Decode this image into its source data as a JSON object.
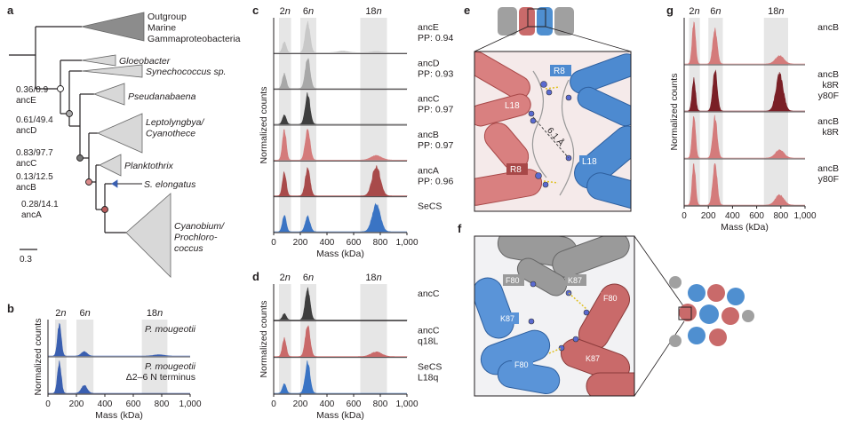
{
  "panels": {
    "a": {
      "label": "a",
      "clades": [
        {
          "lines": [
            "Outgroup",
            "Marine",
            "Gammaproteobacteria"
          ],
          "italic": false
        },
        {
          "lines": [
            "Gloeobacter"
          ],
          "italic": true
        },
        {
          "lines": [
            "Synechococcus sp."
          ],
          "italic": true
        },
        {
          "lines": [
            "Pseudanabaena"
          ],
          "italic": true
        },
        {
          "lines": [
            "Leptolyngbya/",
            "Cyanothece"
          ],
          "italic": true
        },
        {
          "lines": [
            "Planktothrix"
          ],
          "italic": true
        },
        {
          "lines": [
            "S. elongatus"
          ],
          "italic": true
        },
        {
          "lines": [
            "Cyanobium/",
            "Prochloro-",
            "coccus"
          ],
          "italic": true
        }
      ],
      "nodes": [
        {
          "support": "0.36/0.9",
          "name": "ancE",
          "color": "#ffffff"
        },
        {
          "support": "0.61/49.4",
          "name": "ancD",
          "color": "#aaaaaa"
        },
        {
          "support": "0.83/97.7",
          "name": "ancC",
          "color": "#777777"
        },
        {
          "support": "0.13/12.5",
          "name": "ancB",
          "color": "#d98989"
        },
        {
          "support": "0.28/14.1",
          "name": "ancA",
          "color": "#b85c5c"
        }
      ],
      "scale": "0.3"
    },
    "b": {
      "label": "b",
      "ylabel": "Normalized counts",
      "xlabel": "Mass (kDa)",
      "oligomer_labels": [
        "2n",
        "6n",
        "18n"
      ],
      "ticks": [
        "0",
        "200",
        "400",
        "600",
        "800",
        "1,000"
      ],
      "rows": [
        {
          "lines": [
            "P. mougeotii"
          ],
          "color": "#3a5fb0"
        },
        {
          "lines": [
            "P. mougeotii",
            "Δ2–6 N terminus"
          ],
          "color": "#3a5fb0"
        }
      ]
    },
    "c": {
      "label": "c",
      "ylabel": "Normalized counts",
      "xlabel": "Mass (kDa)",
      "oligomer_labels": [
        "2n",
        "6n",
        "18n"
      ],
      "ticks": [
        "0",
        "200",
        "400",
        "600",
        "800",
        "1,000"
      ],
      "rows": [
        {
          "lines": [
            "ancE",
            "PP: 0.94"
          ],
          "color": "#c8c8c8"
        },
        {
          "lines": [
            "ancD",
            "PP: 0.93"
          ],
          "color": "#a8a8a8"
        },
        {
          "lines": [
            "ancC",
            "PP: 0.97"
          ],
          "color": "#3e3e3e"
        },
        {
          "lines": [
            "ancB",
            "PP: 0.97"
          ],
          "color": "#d47b7b"
        },
        {
          "lines": [
            "ancA",
            "PP: 0.96"
          ],
          "color": "#a84a4a"
        },
        {
          "lines": [
            "SeCS"
          ],
          "color": "#3a74c4"
        }
      ]
    },
    "d": {
      "label": "d",
      "ylabel": "Normalized counts",
      "xlabel": "Mass (kDa)",
      "oligomer_labels": [
        "2n",
        "6n",
        "18n"
      ],
      "ticks": [
        "0",
        "200",
        "400",
        "600",
        "800",
        "1,000"
      ],
      "rows": [
        {
          "lines": [
            "ancC"
          ],
          "color": "#3e3e3e"
        },
        {
          "lines": [
            "ancC",
            "q18L"
          ],
          "color": "#c96a6a"
        },
        {
          "lines": [
            "SeCS",
            "L18q"
          ],
          "color": "#3a74c4"
        }
      ]
    },
    "e": {
      "label": "e",
      "residues": [
        "R8",
        "L18",
        "6.1 Å",
        "R8",
        "L18"
      ]
    },
    "f": {
      "label": "f",
      "residues": [
        "F80",
        "K87",
        "F80",
        "K87",
        "F80",
        "K87"
      ]
    },
    "g": {
      "label": "g",
      "ylabel": "Normalized counts",
      "xlabel": "Mass (kDa)",
      "oligomer_labels": [
        "2n",
        "6n",
        "18n"
      ],
      "ticks": [
        "0",
        "200",
        "400",
        "600",
        "800",
        "1,000"
      ],
      "rows": [
        {
          "lines": [
            "ancB"
          ],
          "color": "#d47b7b"
        },
        {
          "lines": [
            "ancB",
            "k8R",
            "y80F"
          ],
          "color": "#7a1f26"
        },
        {
          "lines": [
            "ancB",
            "k8R"
          ],
          "color": "#d47b7b"
        },
        {
          "lines": [
            "ancB",
            "y80F"
          ],
          "color": "#d47b7b"
        }
      ]
    }
  },
  "chart_data": [
    {
      "type": "area",
      "panel": "b",
      "xlabel": "Mass (kDa)",
      "ylabel": "Normalized counts",
      "xlim": [
        0,
        1000
      ],
      "shaded_regions": [
        {
          "label": "2n",
          "x": [
            50,
            130
          ]
        },
        {
          "label": "6n",
          "x": [
            200,
            320
          ]
        },
        {
          "label": "18n",
          "x": [
            660,
            840
          ]
        }
      ],
      "series": [
        {
          "name": "P. mougeotii",
          "peaks": [
            {
              "x": 80,
              "h": 1.0,
              "w": 13
            },
            {
              "x": 255,
              "h": 0.14,
              "w": 20
            },
            {
              "x": 780,
              "h": 0.04,
              "w": 35
            }
          ]
        },
        {
          "name": "P. mougeotii Δ2–6 N terminus",
          "peaks": [
            {
              "x": 80,
              "h": 1.0,
              "w": 13
            },
            {
              "x": 255,
              "h": 0.25,
              "w": 20
            }
          ]
        }
      ]
    },
    {
      "type": "area",
      "panel": "c",
      "xlabel": "Mass (kDa)",
      "ylabel": "Normalized counts",
      "xlim": [
        0,
        1000
      ],
      "shaded_regions": [
        {
          "label": "2n",
          "x": [
            40,
            130
          ]
        },
        {
          "label": "6n",
          "x": [
            200,
            320
          ]
        },
        {
          "label": "18n",
          "x": [
            650,
            850
          ]
        }
      ],
      "series": [
        {
          "name": "ancE",
          "peaks": [
            {
              "x": 80,
              "h": 0.35,
              "w": 14
            },
            {
              "x": 255,
              "h": 1.0,
              "w": 18
            },
            {
              "x": 520,
              "h": 0.05,
              "w": 40
            },
            {
              "x": 770,
              "h": 0.04,
              "w": 40
            }
          ]
        },
        {
          "name": "ancD",
          "peaks": [
            {
              "x": 80,
              "h": 0.5,
              "w": 14
            },
            {
              "x": 255,
              "h": 1.0,
              "w": 18
            }
          ]
        },
        {
          "name": "ancC",
          "peaks": [
            {
              "x": 80,
              "h": 0.3,
              "w": 14
            },
            {
              "x": 255,
              "h": 1.0,
              "w": 18
            }
          ]
        },
        {
          "name": "ancB",
          "peaks": [
            {
              "x": 80,
              "h": 1.0,
              "w": 14
            },
            {
              "x": 255,
              "h": 1.0,
              "w": 18
            },
            {
              "x": 770,
              "h": 0.15,
              "w": 40
            }
          ]
        },
        {
          "name": "ancA",
          "peaks": [
            {
              "x": 80,
              "h": 0.8,
              "w": 14
            },
            {
              "x": 255,
              "h": 0.9,
              "w": 18
            },
            {
              "x": 770,
              "h": 1.0,
              "w": 30
            }
          ]
        },
        {
          "name": "SeCS",
          "peaks": [
            {
              "x": 80,
              "h": 0.55,
              "w": 14
            },
            {
              "x": 255,
              "h": 0.5,
              "w": 18
            },
            {
              "x": 770,
              "h": 0.9,
              "w": 30
            }
          ]
        }
      ]
    },
    {
      "type": "area",
      "panel": "d",
      "xlabel": "Mass (kDa)",
      "ylabel": "Normalized counts",
      "xlim": [
        0,
        1000
      ],
      "shaded_regions": [
        {
          "label": "2n",
          "x": [
            40,
            130
          ]
        },
        {
          "label": "6n",
          "x": [
            200,
            320
          ]
        },
        {
          "label": "18n",
          "x": [
            650,
            850
          ]
        }
      ],
      "series": [
        {
          "name": "ancC",
          "peaks": [
            {
              "x": 80,
              "h": 0.2,
              "w": 14
            },
            {
              "x": 255,
              "h": 1.0,
              "w": 18
            }
          ]
        },
        {
          "name": "ancC q18L",
          "peaks": [
            {
              "x": 80,
              "h": 0.6,
              "w": 14
            },
            {
              "x": 255,
              "h": 1.0,
              "w": 18
            },
            {
              "x": 770,
              "h": 0.15,
              "w": 40
            }
          ]
        },
        {
          "name": "SeCS L18q",
          "peaks": [
            {
              "x": 80,
              "h": 0.3,
              "w": 14
            },
            {
              "x": 255,
              "h": 1.0,
              "w": 18
            }
          ]
        }
      ]
    },
    {
      "type": "area",
      "panel": "g",
      "xlabel": "Mass (kDa)",
      "ylabel": "Normalized counts",
      "xlim": [
        0,
        1000
      ],
      "shaded_regions": [
        {
          "label": "2n",
          "x": [
            40,
            130
          ]
        },
        {
          "label": "6n",
          "x": [
            200,
            320
          ]
        },
        {
          "label": "18n",
          "x": [
            660,
            860
          ]
        }
      ],
      "series": [
        {
          "name": "ancB",
          "peaks": [
            {
              "x": 80,
              "h": 1.0,
              "w": 14
            },
            {
              "x": 255,
              "h": 0.85,
              "w": 18
            },
            {
              "x": 790,
              "h": 0.2,
              "w": 35
            }
          ]
        },
        {
          "name": "ancB k8R y80F",
          "peaks": [
            {
              "x": 80,
              "h": 0.8,
              "w": 14
            },
            {
              "x": 255,
              "h": 1.0,
              "w": 18
            },
            {
              "x": 790,
              "h": 0.9,
              "w": 30
            }
          ]
        },
        {
          "name": "ancB k8R",
          "peaks": [
            {
              "x": 80,
              "h": 1.0,
              "w": 14
            },
            {
              "x": 255,
              "h": 1.0,
              "w": 18
            },
            {
              "x": 790,
              "h": 0.2,
              "w": 35
            }
          ]
        },
        {
          "name": "ancB y80F",
          "peaks": [
            {
              "x": 80,
              "h": 1.0,
              "w": 14
            },
            {
              "x": 255,
              "h": 1.0,
              "w": 18
            },
            {
              "x": 790,
              "h": 0.25,
              "w": 35
            }
          ]
        }
      ]
    }
  ]
}
